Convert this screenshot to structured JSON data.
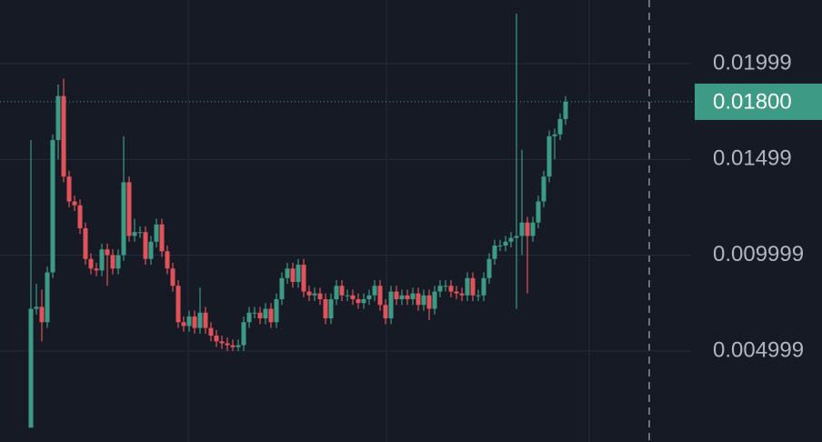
{
  "chart_data": {
    "type": "candlestick",
    "open": [
      0.001,
      0.0072,
      0.0073,
      0.0065,
      0.0091,
      0.016,
      0.0183,
      0.0141,
      0.0128,
      0.0126,
      0.0114,
      0.0098,
      0.0093,
      0.0092,
      0.0103,
      0.01,
      0.0093,
      0.01,
      0.0138,
      0.011,
      0.0112,
      0.0112,
      0.0098,
      0.0107,
      0.0116,
      0.0102,
      0.0093,
      0.0084,
      0.0065,
      0.0063,
      0.0068,
      0.0062,
      0.007,
      0.0062,
      0.0058,
      0.0055,
      0.0054,
      0.0053,
      0.0052,
      0.0053,
      0.0065,
      0.007,
      0.007,
      0.0067,
      0.0072,
      0.0065,
      0.0077,
      0.0088,
      0.0093,
      0.0086,
      0.0095,
      0.0081,
      0.0079,
      0.008,
      0.0077,
      0.0067,
      0.0077,
      0.0084,
      0.0079,
      0.0079,
      0.0077,
      0.0075,
      0.0077,
      0.0079,
      0.0084,
      0.0074,
      0.0067,
      0.0081,
      0.0077,
      0.0079,
      0.0077,
      0.008,
      0.0074,
      0.0079,
      0.0072,
      0.0081,
      0.0084,
      0.0084,
      0.0081,
      0.008,
      0.0079,
      0.0088,
      0.0079,
      0.0079,
      0.0088,
      0.0098,
      0.0105,
      0.0105,
      0.0107,
      0.0109,
      0.011,
      0.0117,
      0.011,
      0.0117,
      0.0128,
      0.0141,
      0.0162,
      0.0163,
      0.0171
    ],
    "high": [
      0.016,
      0.0085,
      0.0082,
      0.0094,
      0.0163,
      0.0189,
      0.0192,
      0.0144,
      0.0131,
      0.0129,
      0.0117,
      0.0101,
      0.0096,
      0.0106,
      0.0106,
      0.0103,
      0.0103,
      0.0162,
      0.0141,
      0.0119,
      0.0115,
      0.0115,
      0.011,
      0.0119,
      0.0119,
      0.0105,
      0.0096,
      0.0087,
      0.0068,
      0.0071,
      0.0071,
      0.0083,
      0.0073,
      0.0065,
      0.0061,
      0.0058,
      0.0057,
      0.0056,
      0.0056,
      0.0068,
      0.0073,
      0.0073,
      0.0073,
      0.0075,
      0.0075,
      0.008,
      0.0091,
      0.0096,
      0.0096,
      0.0098,
      0.0098,
      0.0084,
      0.0083,
      0.0083,
      0.008,
      0.008,
      0.0087,
      0.0087,
      0.0082,
      0.0082,
      0.008,
      0.008,
      0.0082,
      0.0087,
      0.0087,
      0.0077,
      0.0084,
      0.0084,
      0.0082,
      0.0082,
      0.0083,
      0.0083,
      0.0082,
      0.0082,
      0.0084,
      0.0087,
      0.0087,
      0.0087,
      0.0084,
      0.0083,
      0.0091,
      0.0091,
      0.0082,
      0.0091,
      0.0101,
      0.0108,
      0.0108,
      0.011,
      0.0112,
      0.0226,
      0.0155,
      0.012,
      0.012,
      0.0131,
      0.0144,
      0.0165,
      0.0166,
      0.0174,
      0.0183
    ],
    "low": [
      0.001,
      0.0069,
      0.0055,
      0.0062,
      0.0088,
      0.015,
      0.0138,
      0.0125,
      0.0123,
      0.0111,
      0.0095,
      0.009,
      0.0089,
      0.0089,
      0.0084,
      0.009,
      0.009,
      0.0097,
      0.0107,
      0.0107,
      0.0109,
      0.0095,
      0.0095,
      0.0104,
      0.0099,
      0.009,
      0.0081,
      0.0062,
      0.006,
      0.006,
      0.0059,
      0.0059,
      0.0059,
      0.0055,
      0.0052,
      0.0051,
      0.005,
      0.005,
      0.005,
      0.005,
      0.0062,
      0.0067,
      0.0064,
      0.0064,
      0.0062,
      0.0062,
      0.0074,
      0.0085,
      0.0083,
      0.0083,
      0.0078,
      0.0076,
      0.0076,
      0.0074,
      0.0064,
      0.0064,
      0.0074,
      0.0076,
      0.0076,
      0.0074,
      0.0072,
      0.0072,
      0.0074,
      0.0076,
      0.0071,
      0.0064,
      0.0064,
      0.0074,
      0.0074,
      0.0074,
      0.0074,
      0.0071,
      0.0071,
      0.0066,
      0.0069,
      0.0078,
      0.0081,
      0.0078,
      0.0077,
      0.0076,
      0.0076,
      0.0076,
      0.0076,
      0.0076,
      0.0085,
      0.0095,
      0.0102,
      0.0102,
      0.0104,
      0.0072,
      0.01,
      0.008,
      0.0107,
      0.0114,
      0.0125,
      0.0138,
      0.015,
      0.016,
      0.0168
    ],
    "close": [
      0.0072,
      0.0073,
      0.0065,
      0.0091,
      0.016,
      0.0183,
      0.0141,
      0.0128,
      0.0126,
      0.0114,
      0.0098,
      0.0093,
      0.0092,
      0.0103,
      0.01,
      0.0093,
      0.01,
      0.0138,
      0.011,
      0.0112,
      0.0112,
      0.0098,
      0.0107,
      0.0116,
      0.0102,
      0.0093,
      0.0084,
      0.0065,
      0.0063,
      0.0068,
      0.0062,
      0.007,
      0.0062,
      0.0058,
      0.0055,
      0.0054,
      0.0053,
      0.0052,
      0.0053,
      0.0065,
      0.007,
      0.007,
      0.0067,
      0.0072,
      0.0065,
      0.0077,
      0.0088,
      0.0093,
      0.0086,
      0.0095,
      0.0081,
      0.0079,
      0.008,
      0.0077,
      0.0067,
      0.0077,
      0.0084,
      0.0079,
      0.0079,
      0.0077,
      0.0075,
      0.0077,
      0.0079,
      0.0084,
      0.0074,
      0.0067,
      0.0081,
      0.0077,
      0.0079,
      0.0077,
      0.008,
      0.0074,
      0.0079,
      0.0072,
      0.0081,
      0.0084,
      0.0084,
      0.0081,
      0.008,
      0.0079,
      0.0088,
      0.0079,
      0.0079,
      0.0088,
      0.0098,
      0.0105,
      0.0105,
      0.0107,
      0.0109,
      0.011,
      0.0117,
      0.011,
      0.0117,
      0.0128,
      0.0141,
      0.0162,
      0.0163,
      0.0171,
      0.018
    ],
    "up_color": "#3d9a84",
    "down_color": "#e0535a",
    "ylim": [
      0.00025,
      0.02331
    ],
    "yticks": [
      0.01999,
      0.01499,
      0.009999,
      0.004999
    ],
    "last_price": {
      "value": 0.018,
      "label": "0.01800"
    },
    "grid": true
  }
}
